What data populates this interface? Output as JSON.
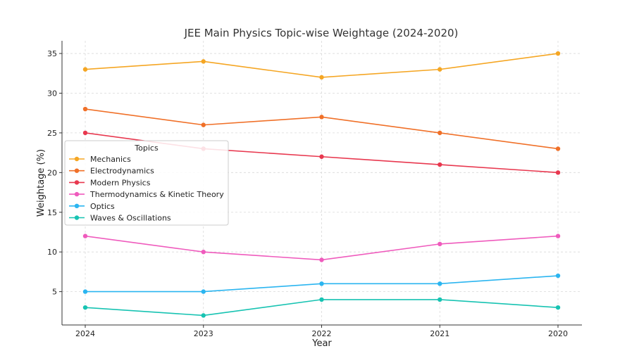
{
  "chart_data": {
    "type": "line",
    "title": "JEE Main Physics Topic-wise Weightage (2024-2020)",
    "xlabel": "Year",
    "ylabel": "Weightage (%)",
    "categories": [
      "2024",
      "2023",
      "2022",
      "2021",
      "2020"
    ],
    "ylim": [
      0.8,
      36.6
    ],
    "yticks": [
      5,
      10,
      15,
      20,
      25,
      30,
      35
    ],
    "grid": true,
    "legend": {
      "title": "Topics",
      "placement": "center-left"
    },
    "series": [
      {
        "name": "Mechanics",
        "color": "#f5a623",
        "values": [
          33,
          34,
          32,
          33,
          35
        ]
      },
      {
        "name": "Electrodynamics",
        "color": "#f07028",
        "values": [
          28,
          26,
          27,
          25,
          23
        ]
      },
      {
        "name": "Modern Physics",
        "color": "#e8384f",
        "values": [
          25,
          23,
          22,
          21,
          20
        ]
      },
      {
        "name": "Thermodynamics & Kinetic Theory",
        "color": "#ef5bbd",
        "values": [
          12,
          10,
          9,
          11,
          12
        ]
      },
      {
        "name": "Optics",
        "color": "#2bb5f0",
        "values": [
          5,
          5,
          6,
          6,
          7
        ]
      },
      {
        "name": "Waves & Oscillations",
        "color": "#17c3b2",
        "values": [
          3,
          2,
          4,
          4,
          3
        ]
      }
    ]
  }
}
